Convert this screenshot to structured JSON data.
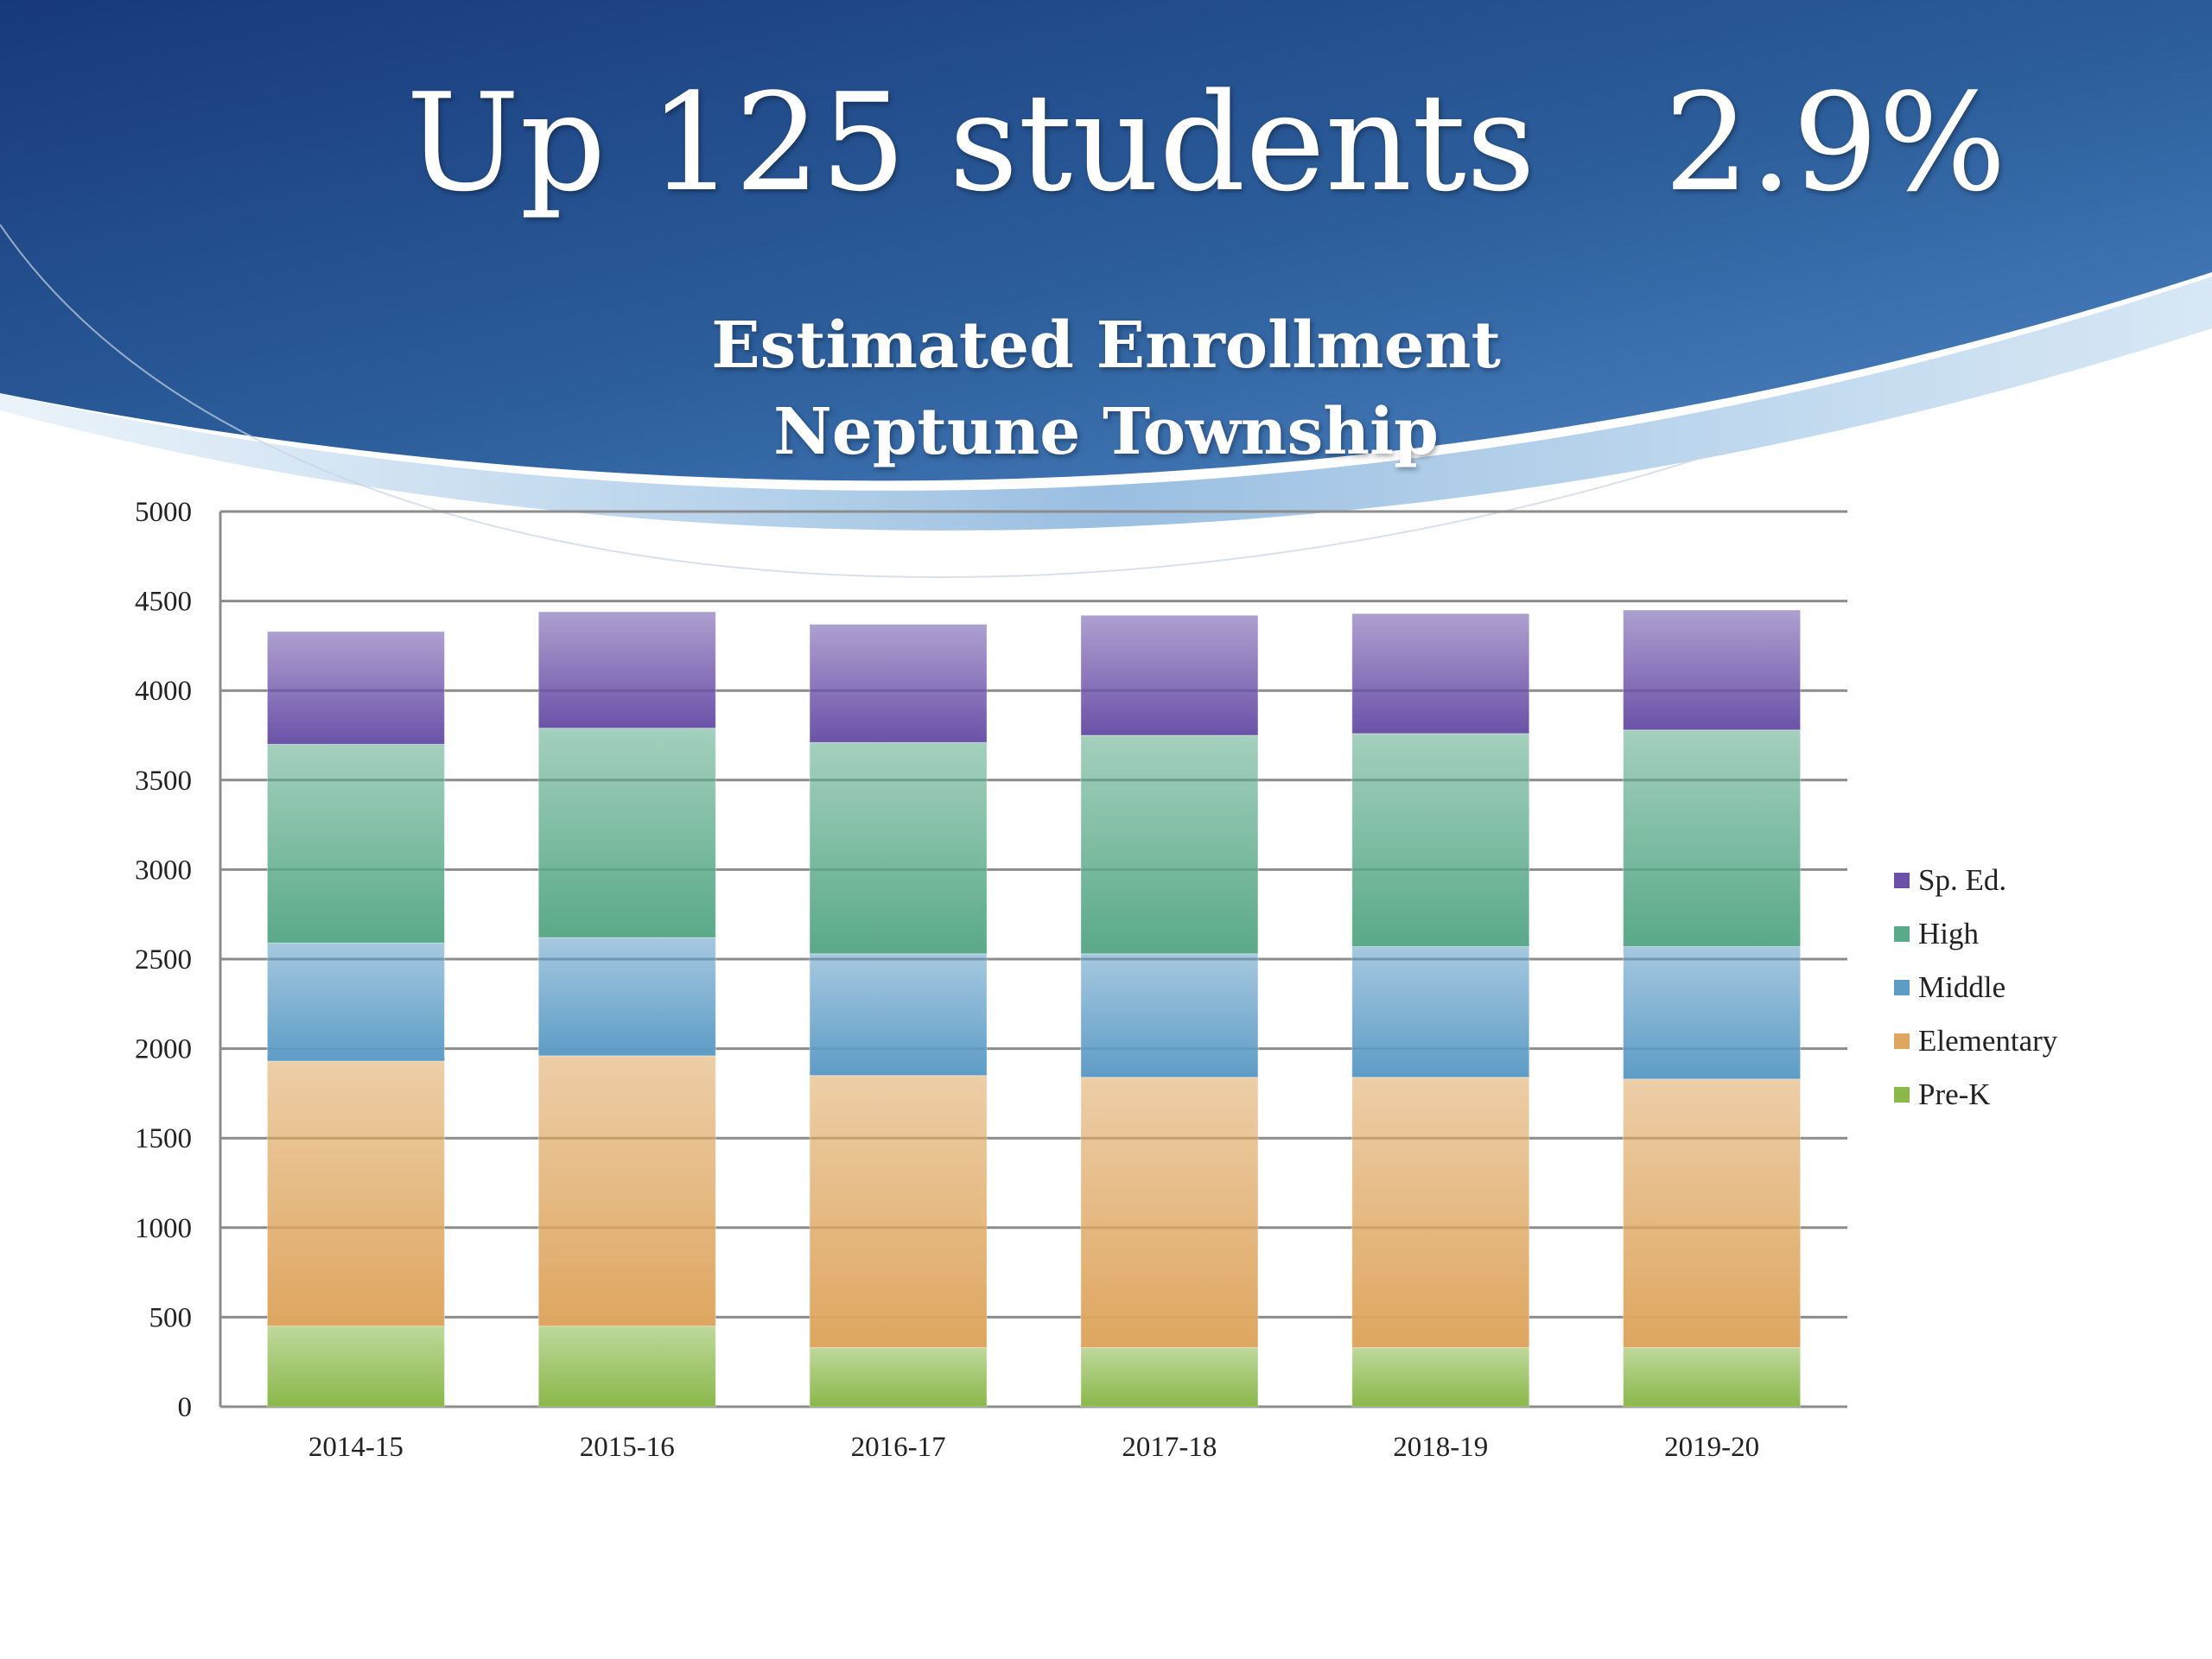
{
  "slide": {
    "title": "Up 125 students   2.9%"
  },
  "colors": {
    "banner": "#2d5f9c",
    "banner_dark": "#17397a",
    "banner_light": "#4f86c6",
    "gridline": "#8c8c8c"
  },
  "chart_data": {
    "type": "bar",
    "stacked": true,
    "title": [
      "Estimated Enrollment",
      "Neptune Township"
    ],
    "categories": [
      "2014-15",
      "2015-16",
      "2016-17",
      "2017-18",
      "2018-19",
      "2019-20"
    ],
    "ylim": [
      0,
      5000
    ],
    "yticks": [
      "0",
      "500",
      "1000",
      "1500",
      "2000",
      "2500",
      "3000",
      "3500",
      "4000",
      "4500",
      "5000"
    ],
    "grid": true,
    "legend_position": "right",
    "series": [
      {
        "name": "Pre-K",
        "color": "#8ab84a",
        "values": [
          450,
          450,
          330,
          330,
          330,
          330
        ]
      },
      {
        "name": "Elementary",
        "color": "#dea660",
        "values": [
          1480,
          1510,
          1520,
          1510,
          1510,
          1500
        ]
      },
      {
        "name": "Middle",
        "color": "#5e9cc6",
        "values": [
          660,
          660,
          680,
          690,
          730,
          740
        ]
      },
      {
        "name": "High",
        "color": "#5aa989",
        "values": [
          1110,
          1170,
          1180,
          1220,
          1190,
          1210
        ]
      },
      {
        "name": "Sp. Ed.",
        "color": "#6b52a8",
        "values": [
          630,
          650,
          660,
          670,
          670,
          670
        ]
      }
    ]
  }
}
